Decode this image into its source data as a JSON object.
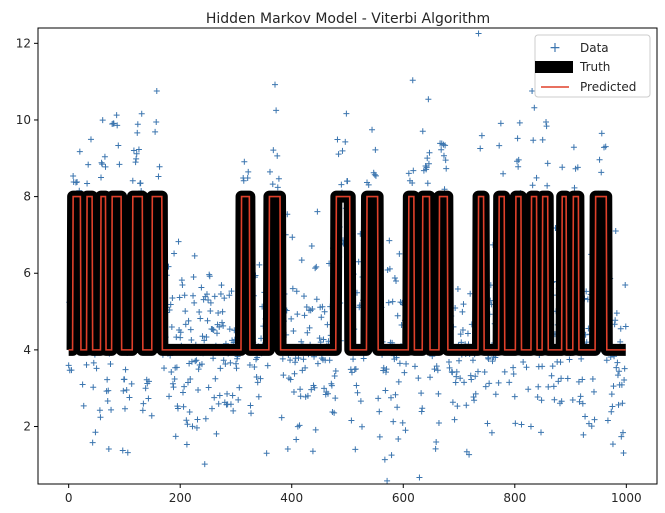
{
  "chart_data": {
    "type": "line",
    "title": "Hidden Markov Model - Viterbi Algorithm",
    "xlabel": "",
    "ylabel": "",
    "xlim": [
      -55,
      1055
    ],
    "ylim": [
      0.5,
      12.4
    ],
    "xticks": [
      0,
      200,
      400,
      600,
      800,
      1000
    ],
    "yticks": [
      2,
      4,
      6,
      8,
      10,
      12
    ],
    "grid": false,
    "legend": {
      "placement": "top-right",
      "entries": [
        "Data",
        "Truth",
        "Predicted"
      ]
    },
    "colors": {
      "data": "#3b75af",
      "truth": "#000000",
      "predicted": "#e0402a"
    },
    "n_points": 1000,
    "state_levels": [
      4,
      8
    ],
    "truth_change_points": [
      0,
      8,
      22,
      33,
      43,
      58,
      67,
      78,
      95,
      115,
      133,
      150,
      168,
      310,
      325,
      360,
      380,
      480,
      505,
      535,
      555,
      610,
      620,
      635,
      648,
      665,
      680,
      735,
      745,
      772,
      782,
      802,
      812,
      830,
      840,
      850,
      860,
      885,
      893,
      905,
      915,
      945,
      965,
      1000
    ],
    "series": [
      {
        "name": "Data",
        "kind": "scatter",
        "note_noise_sd": 1.3
      },
      {
        "name": "Truth",
        "kind": "step"
      },
      {
        "name": "Predicted",
        "kind": "step"
      }
    ]
  }
}
